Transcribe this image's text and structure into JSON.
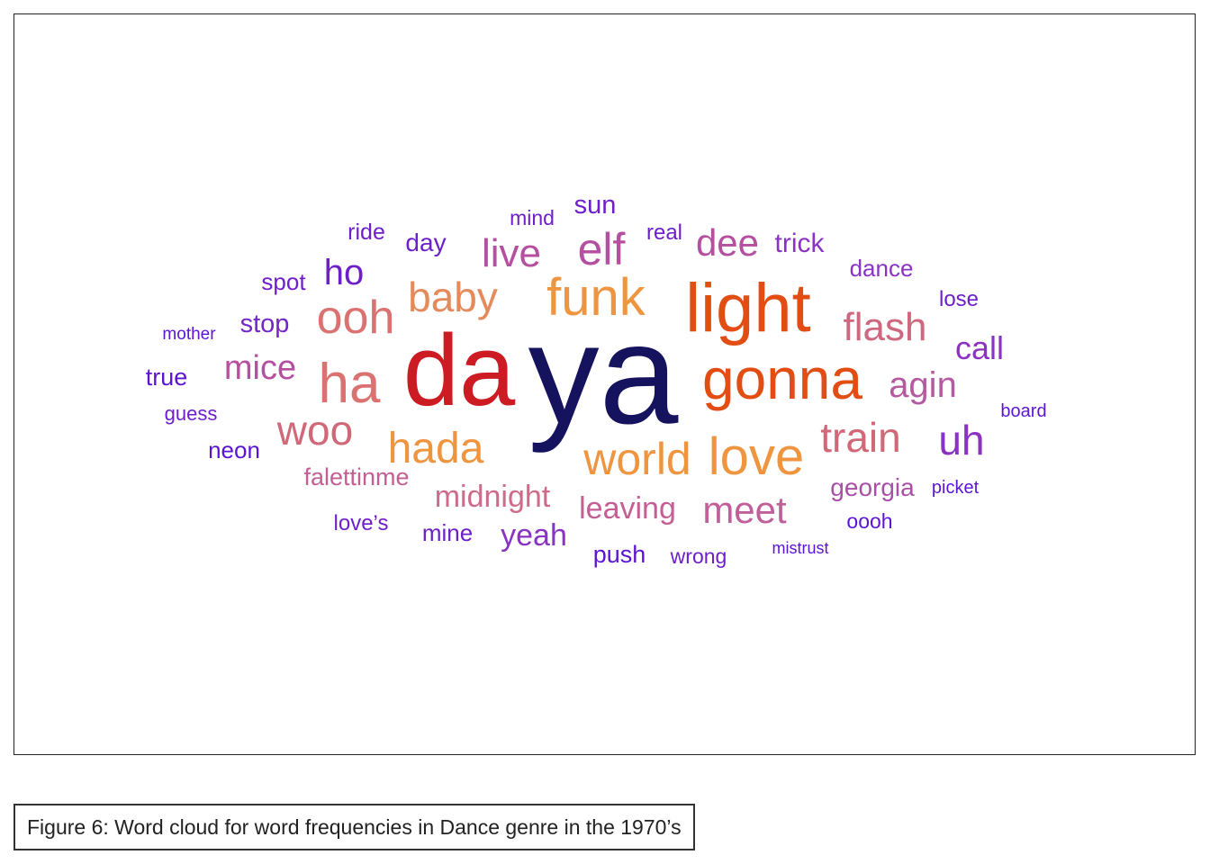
{
  "chart_data": {
    "type": "wordcloud",
    "caption": "Figure 6: Word cloud for word frequencies in Dance genre in the 1970’s",
    "words": [
      {
        "text": "ya",
        "color": "#15125e"
      },
      {
        "text": "da",
        "color": "#cd1b24"
      },
      {
        "text": "light",
        "color": "#e14d12"
      },
      {
        "text": "gonna",
        "color": "#e14d12"
      },
      {
        "text": "funk",
        "color": "#ef9540"
      },
      {
        "text": "love",
        "color": "#ef9540"
      },
      {
        "text": "world",
        "color": "#ef9540"
      },
      {
        "text": "hada",
        "color": "#ef9540"
      },
      {
        "text": "baby",
        "color": "#e58a5a"
      },
      {
        "text": "ha",
        "color": "#d97271"
      },
      {
        "text": "ooh",
        "color": "#d97271"
      },
      {
        "text": "woo",
        "color": "#d06878"
      },
      {
        "text": "train",
        "color": "#d06878"
      },
      {
        "text": "flash",
        "color": "#cf6780"
      },
      {
        "text": "elf",
        "color": "#b54f9f"
      },
      {
        "text": "live",
        "color": "#b54f9f"
      },
      {
        "text": "dee",
        "color": "#b54f9f"
      },
      {
        "text": "meet",
        "color": "#c0609a"
      },
      {
        "text": "agin",
        "color": "#b45aa0"
      },
      {
        "text": "mice",
        "color": "#b54f9f"
      },
      {
        "text": "midnight",
        "color": "#cd6c8a"
      },
      {
        "text": "leaving",
        "color": "#c45e94"
      },
      {
        "text": "uh",
        "color": "#8a32c2"
      },
      {
        "text": "call",
        "color": "#8a32c2"
      },
      {
        "text": "ho",
        "color": "#6d1fc9"
      },
      {
        "text": "yeah",
        "color": "#8a32c2"
      },
      {
        "text": "falettinme",
        "color": "#c45e94"
      },
      {
        "text": "georgia",
        "color": "#a84fa8"
      },
      {
        "text": "stop",
        "color": "#7426c8"
      },
      {
        "text": "trick",
        "color": "#8a32c2"
      },
      {
        "text": "dance",
        "color": "#8a32c2"
      },
      {
        "text": "day",
        "color": "#6d1fc9"
      },
      {
        "text": "sun",
        "color": "#6d1fc9"
      },
      {
        "text": "true",
        "color": "#5b14d4"
      },
      {
        "text": "neon",
        "color": "#5b14d4"
      },
      {
        "text": "push",
        "color": "#5b14d4"
      },
      {
        "text": "mine",
        "color": "#6d1fc9"
      },
      {
        "text": "love’s",
        "color": "#6d1fc9"
      },
      {
        "text": "spot",
        "color": "#6d1fc9"
      },
      {
        "text": "ride",
        "color": "#6d1fc9"
      },
      {
        "text": "real",
        "color": "#6d1fc9"
      },
      {
        "text": "mind",
        "color": "#6d1fc9"
      },
      {
        "text": "lose",
        "color": "#6d1fc9"
      },
      {
        "text": "oooh",
        "color": "#5b14d4"
      },
      {
        "text": "wrong",
        "color": "#6d1fc9"
      },
      {
        "text": "guess",
        "color": "#6d1fc9"
      },
      {
        "text": "board",
        "color": "#5b14d4"
      },
      {
        "text": "picket",
        "color": "#5b14d4"
      },
      {
        "text": "mother",
        "color": "#5b14d4"
      },
      {
        "text": "mistrust",
        "color": "#5b14d4"
      }
    ]
  }
}
